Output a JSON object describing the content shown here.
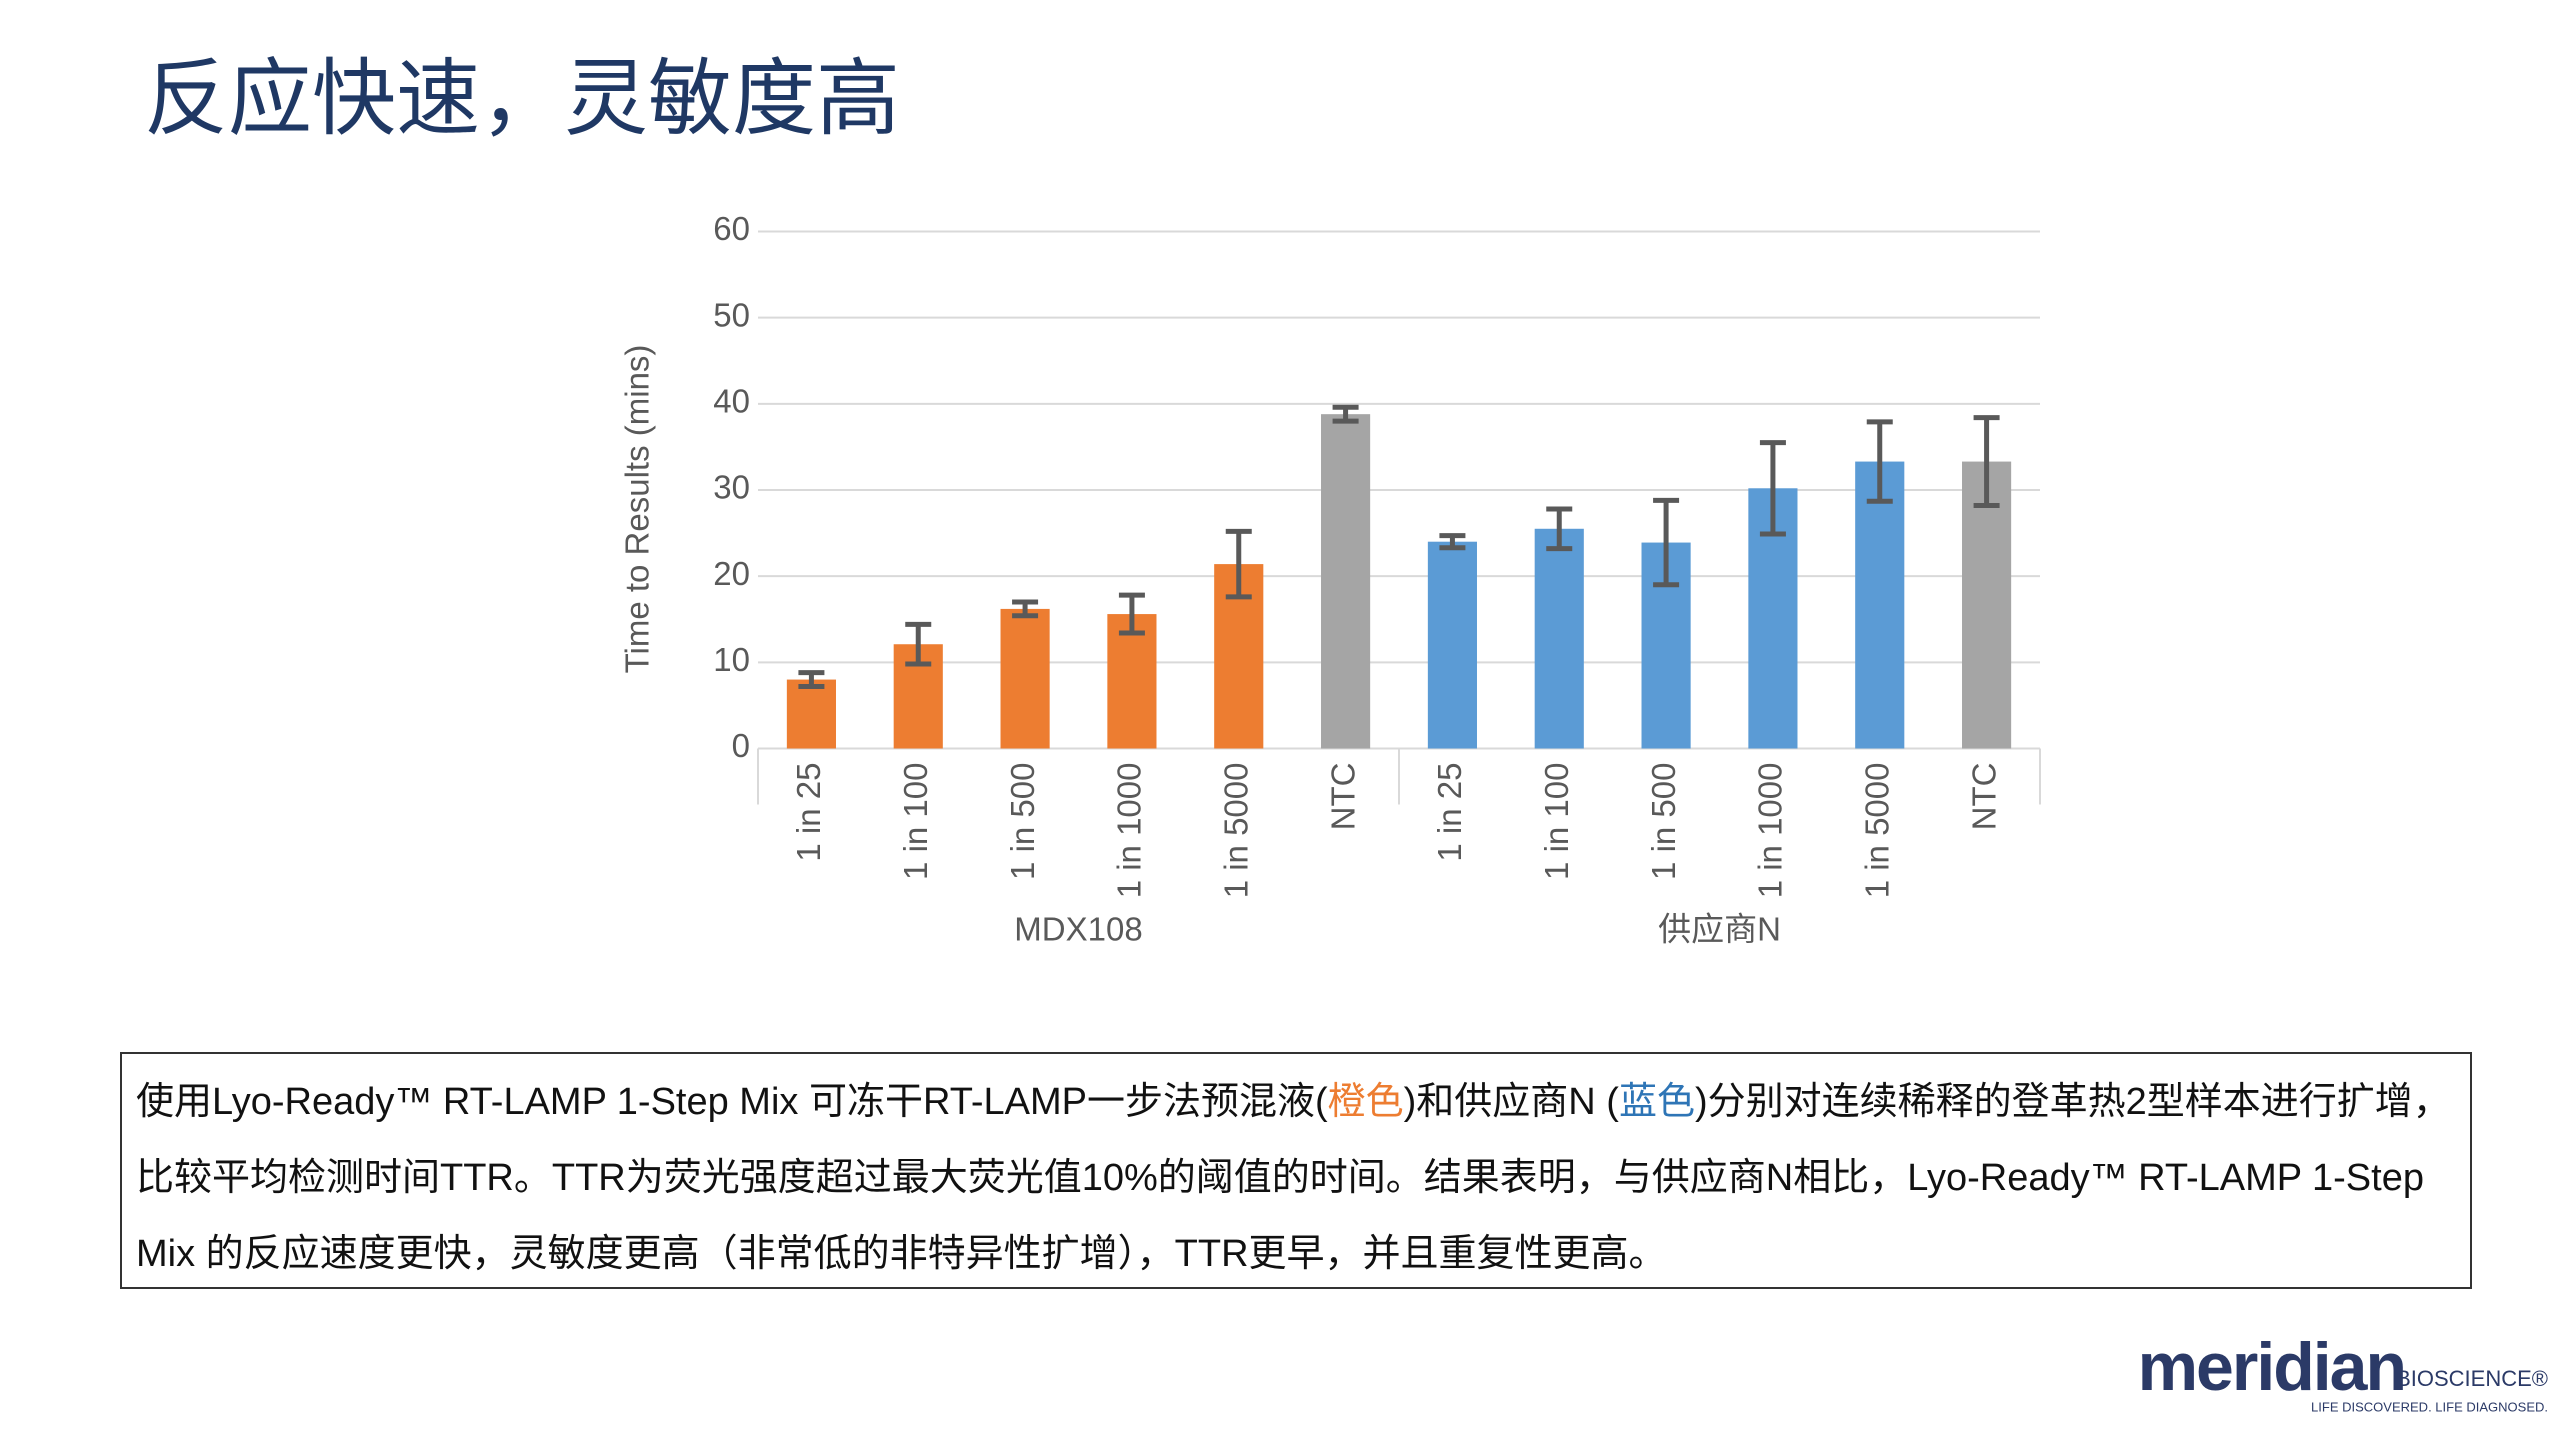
{
  "title": "反应快速，灵敏度高",
  "chart_data": {
    "type": "bar",
    "y_label": "Time to Results (mins)",
    "categories": [
      "1 in 25",
      "1 in 100",
      "1 in 500",
      "1 in 1000",
      "1 in 5000",
      "NTC",
      "1 in 25",
      "1 in 100",
      "1 in 500",
      "1 in 1000",
      "1 in 5000",
      "NTC"
    ],
    "groups": [
      "MDX108",
      "供应商N"
    ],
    "values": [
      8,
      12.1,
      16.2,
      15.6,
      21.4,
      38.8,
      24,
      25.5,
      23.9,
      30.2,
      33.3,
      33.3
    ],
    "errors": [
      0.8,
      2.3,
      0.8,
      2.2,
      3.8,
      0.8,
      0.7,
      2.3,
      4.9,
      5.3,
      4.6,
      5.1
    ],
    "colors": [
      "#ed7d31",
      "#ed7d31",
      "#ed7d31",
      "#ed7d31",
      "#ed7d31",
      "#a5a5a5",
      "#5b9bd5",
      "#5b9bd5",
      "#5b9bd5",
      "#5b9bd5",
      "#5b9bd5",
      "#a5a5a5"
    ],
    "ylim": [
      0,
      60
    ],
    "yticks": [
      0,
      10,
      20,
      30,
      40,
      50,
      60
    ],
    "grid": true
  },
  "caption": {
    "parts": [
      {
        "text": "使用Lyo-Ready™ RT-LAMP 1-Step Mix 可冻干RT-LAMP一步法预混液("
      },
      {
        "text": "橙色",
        "color": "#ed7d31"
      },
      {
        "text": ")和供应商N ("
      },
      {
        "text": "蓝色",
        "color": "#2e75b6"
      },
      {
        "text": ")分别对连续稀释的登革热2型样本进行扩增，比较平均检测时间TTR。TTR为荧光强度超过最大荧光值10%的阈值的时间。结果表明，与供应商N相比，Lyo-Ready™ RT-LAMP 1-Step Mix 的反应速度更快，灵敏度更高（非常低的非特异性扩增），TTR更早，并且重复性更高。"
      }
    ]
  },
  "logo": {
    "name": "meridian",
    "suffix": "BIOSCIENCE®",
    "tagline": "LIFE DISCOVERED. LIFE DIAGNOSED."
  }
}
